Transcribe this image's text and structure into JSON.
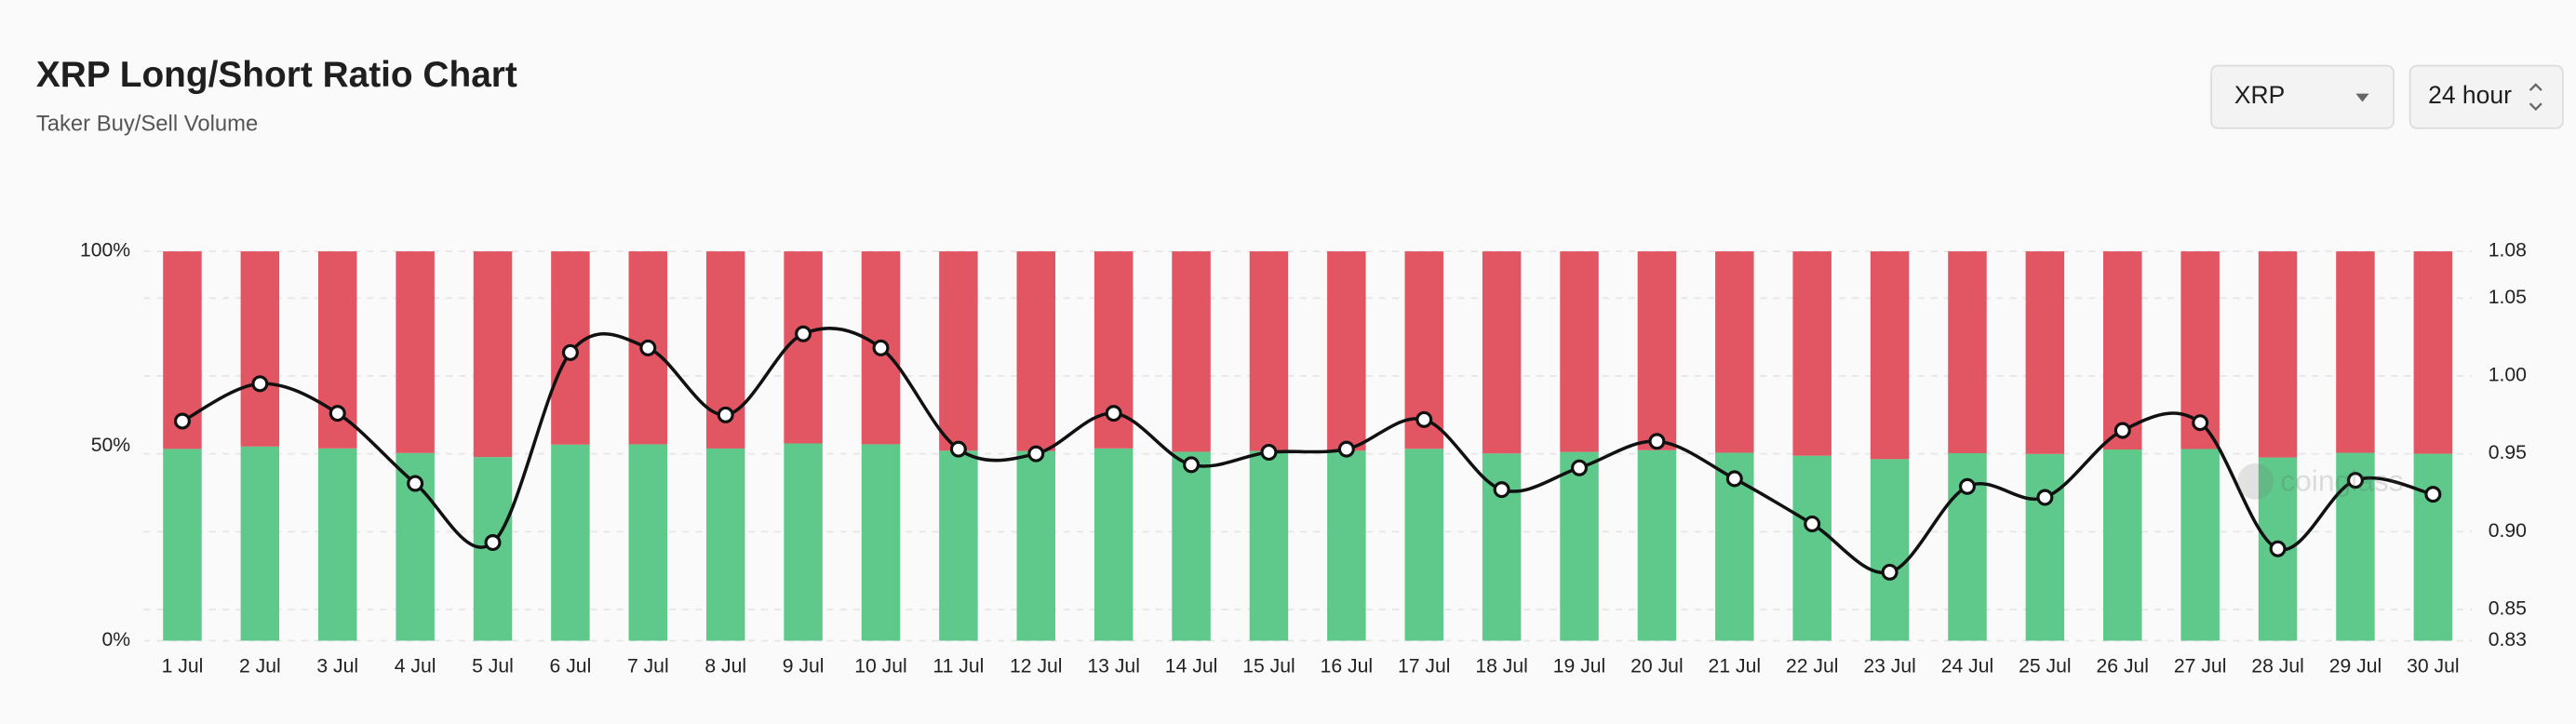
{
  "chart_data": {
    "type": "stacked_bar",
    "title": "XRP Long/Short Ratio Chart",
    "subtitle": "Taker Buy/Sell Volume",
    "categories": [
      "1 Jul",
      "2 Jul",
      "3 Jul",
      "4 Jul",
      "5 Jul",
      "6 Jul",
      "7 Jul",
      "8 Jul",
      "9 Jul",
      "10 Jul",
      "11 Jul",
      "12 Jul",
      "13 Jul",
      "14 Jul",
      "15 Jul",
      "16 Jul",
      "17 Jul",
      "18 Jul",
      "19 Jul",
      "20 Jul",
      "21 Jul",
      "22 Jul",
      "23 Jul",
      "24 Jul",
      "25 Jul",
      "26 Jul",
      "27 Jul",
      "28 Jul",
      "29 Jul",
      "30 Jul"
    ],
    "series": [
      {
        "color": "#5ec98a",
        "values": [
          49.26,
          49.87,
          49.39,
          48.21,
          47.17,
          50.37,
          50.45,
          49.37,
          50.67,
          50.45,
          48.8,
          48.72,
          49.39,
          48.53,
          48.74,
          48.8,
          49.29,
          48.1,
          48.48,
          48.93,
          48.29,
          47.51,
          46.64,
          48.16,
          47.97,
          49.11,
          49.24,
          47.06,
          48.27,
          48.02
        ]
      },
      {
        "color": "#e25563",
        "values": [
          50.74,
          50.13,
          50.61,
          51.79,
          52.83,
          49.63,
          49.55,
          50.63,
          49.33,
          49.55,
          51.2,
          51.28,
          50.61,
          51.47,
          51.26,
          51.2,
          50.71,
          51.9,
          51.52,
          51.07,
          51.71,
          52.49,
          53.36,
          51.84,
          52.03,
          50.89,
          50.76,
          52.94,
          51.73,
          51.98
        ]
      },
      {
        "type": "line",
        "axis": "y2",
        "color": "#111111",
        "values": [
          0.971,
          0.995,
          0.976,
          0.931,
          0.893,
          1.015,
          1.018,
          0.975,
          1.027,
          1.018,
          0.953,
          0.95,
          0.976,
          0.943,
          0.951,
          0.953,
          0.972,
          0.927,
          0.941,
          0.958,
          0.934,
          0.905,
          0.874,
          0.929,
          0.922,
          0.965,
          0.97,
          0.889,
          0.933,
          0.924
        ]
      }
    ],
    "ylim": [
      0,
      100
    ],
    "yticks": [
      {
        "value": 0,
        "label": "0%"
      },
      {
        "value": 50,
        "label": "50%"
      },
      {
        "value": 100,
        "label": "100%"
      }
    ],
    "y2lim": [
      0.83,
      1.08
    ],
    "y2ticks": [
      0.83,
      0.85,
      {
        "value": 0.9,
        "label": "0.90"
      },
      0.95,
      {
        "value": 1,
        "label": "1.00"
      },
      1.05,
      1.08
    ],
    "grid": true
  },
  "controls": {
    "symbol": "XRP",
    "interval": "24 hour"
  },
  "watermark": "coinglass"
}
